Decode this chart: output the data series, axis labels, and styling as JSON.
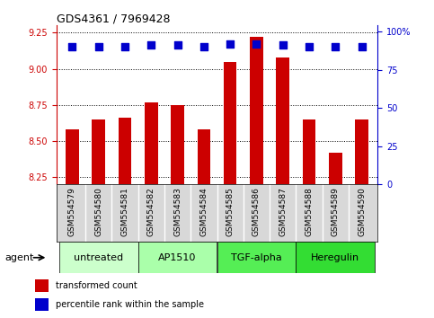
{
  "title": "GDS4361 / 7969428",
  "samples": [
    "GSM554579",
    "GSM554580",
    "GSM554581",
    "GSM554582",
    "GSM554583",
    "GSM554584",
    "GSM554585",
    "GSM554586",
    "GSM554587",
    "GSM554588",
    "GSM554589",
    "GSM554590"
  ],
  "bar_values": [
    8.58,
    8.65,
    8.66,
    8.77,
    8.75,
    8.58,
    9.05,
    9.22,
    9.08,
    8.65,
    8.42,
    8.65
  ],
  "percentile_values": [
    90,
    90,
    90,
    91,
    91,
    90,
    92,
    92,
    91,
    90,
    90,
    90
  ],
  "bar_color": "#cc0000",
  "dot_color": "#0000cc",
  "ylim_left": [
    8.2,
    9.3
  ],
  "ylim_right": [
    0,
    104
  ],
  "yticks_left": [
    8.25,
    8.5,
    8.75,
    9.0,
    9.25
  ],
  "yticks_right": [
    0,
    25,
    50,
    75,
    100
  ],
  "groups": [
    {
      "label": "untreated",
      "start": 0,
      "end": 3,
      "color": "#ccffcc"
    },
    {
      "label": "AP1510",
      "start": 3,
      "end": 6,
      "color": "#aaffaa"
    },
    {
      "label": "TGF-alpha",
      "start": 6,
      "end": 9,
      "color": "#55ee55"
    },
    {
      "label": "Heregulin",
      "start": 9,
      "end": 12,
      "color": "#33dd33"
    }
  ],
  "agent_label": "agent",
  "legend_red": "transformed count",
  "legend_blue": "percentile rank within the sample",
  "background_color": "#ffffff",
  "bar_width": 0.5,
  "dot_size": 40,
  "xtick_bg": "#d8d8d8"
}
